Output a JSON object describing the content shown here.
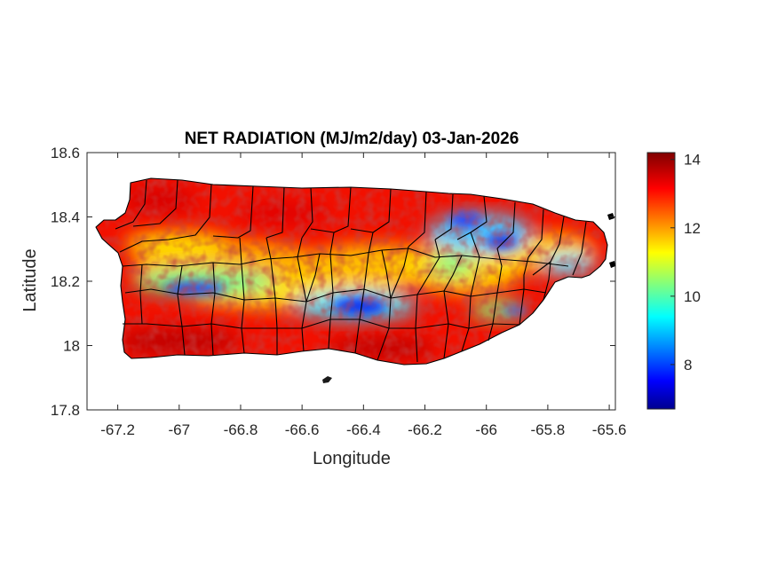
{
  "title": "NET RADIATION (MJ/m2/day) 03-Jan-2026",
  "xlabel": "Longitude",
  "ylabel": "Latitude",
  "xticks": [
    {
      "value": -67.2,
      "label": "-67.2"
    },
    {
      "value": -67,
      "label": "-67"
    },
    {
      "value": -66.8,
      "label": "-66.8"
    },
    {
      "value": -66.6,
      "label": "-66.6"
    },
    {
      "value": -66.4,
      "label": "-66.4"
    },
    {
      "value": -66.2,
      "label": "-66.2"
    },
    {
      "value": -66,
      "label": "-66"
    },
    {
      "value": -65.8,
      "label": "-65.8"
    },
    {
      "value": -65.6,
      "label": "-65.6"
    }
  ],
  "yticks": [
    {
      "value": 18.6,
      "label": "18.6"
    },
    {
      "value": 18.4,
      "label": "18.4"
    },
    {
      "value": 18.2,
      "label": "18.2"
    },
    {
      "value": 18,
      "label": "18"
    },
    {
      "value": 17.8,
      "label": "17.8"
    }
  ],
  "xlim": [
    -67.3,
    -65.58
  ],
  "ylim": [
    17.8,
    18.6
  ],
  "colorbar": {
    "colormap": "jet",
    "range": [
      6.7,
      14.2
    ],
    "ticks": [
      {
        "value": 14,
        "label": "14"
      },
      {
        "value": 12,
        "label": "12"
      },
      {
        "value": 10,
        "label": "10"
      },
      {
        "value": 8,
        "label": "8"
      }
    ]
  }
}
